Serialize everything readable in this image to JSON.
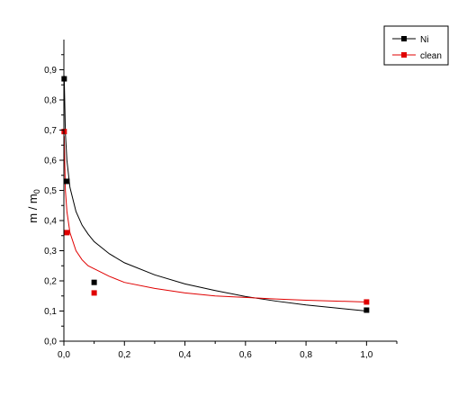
{
  "chart_data": {
    "type": "scatter",
    "title": "",
    "xlabel": "",
    "ylabel": "m / m",
    "ylabel_sub": "0",
    "xlim": [
      0.0,
      1.1
    ],
    "ylim": [
      0.0,
      1.0
    ],
    "x_ticks": [
      0.0,
      0.2,
      0.4,
      0.6,
      0.8,
      1.0
    ],
    "x_tick_labels": [
      "0,0",
      "0,2",
      "0,4",
      "0,6",
      "0,8",
      "1,0"
    ],
    "y_ticks": [
      0.0,
      0.1,
      0.2,
      0.3,
      0.4,
      0.5,
      0.6,
      0.7,
      0.8,
      0.9
    ],
    "y_tick_labels": [
      "0,0",
      "0,1",
      "0,2",
      "0,3",
      "0,4",
      "0,5",
      "0,6",
      "0,7",
      "0,8",
      "0,9"
    ],
    "grid": false,
    "legend_position": "top-right",
    "series": [
      {
        "name": "Ni",
        "color": "#000000",
        "marker": "square",
        "points": [
          {
            "x": 0.001,
            "y": 0.87
          },
          {
            "x": 0.01,
            "y": 0.53
          },
          {
            "x": 0.1,
            "y": 0.195
          },
          {
            "x": 1.0,
            "y": 0.103
          }
        ],
        "fit_curve": [
          {
            "x": 0.001,
            "y": 0.88
          },
          {
            "x": 0.005,
            "y": 0.69
          },
          {
            "x": 0.01,
            "y": 0.6
          },
          {
            "x": 0.02,
            "y": 0.51
          },
          {
            "x": 0.04,
            "y": 0.43
          },
          {
            "x": 0.06,
            "y": 0.385
          },
          {
            "x": 0.08,
            "y": 0.355
          },
          {
            "x": 0.1,
            "y": 0.33
          },
          {
            "x": 0.15,
            "y": 0.29
          },
          {
            "x": 0.2,
            "y": 0.26
          },
          {
            "x": 0.3,
            "y": 0.22
          },
          {
            "x": 0.4,
            "y": 0.19
          },
          {
            "x": 0.5,
            "y": 0.168
          },
          {
            "x": 0.6,
            "y": 0.148
          },
          {
            "x": 0.7,
            "y": 0.133
          },
          {
            "x": 0.8,
            "y": 0.12
          },
          {
            "x": 0.9,
            "y": 0.11
          },
          {
            "x": 1.0,
            "y": 0.1
          }
        ]
      },
      {
        "name": "clean",
        "color": "#e00000",
        "marker": "square",
        "points": [
          {
            "x": 0.001,
            "y": 0.695
          },
          {
            "x": 0.01,
            "y": 0.36
          },
          {
            "x": 0.1,
            "y": 0.16
          },
          {
            "x": 1.0,
            "y": 0.13
          }
        ],
        "fit_curve": [
          {
            "x": 0.001,
            "y": 0.68
          },
          {
            "x": 0.005,
            "y": 0.5
          },
          {
            "x": 0.01,
            "y": 0.43
          },
          {
            "x": 0.02,
            "y": 0.36
          },
          {
            "x": 0.04,
            "y": 0.3
          },
          {
            "x": 0.06,
            "y": 0.27
          },
          {
            "x": 0.08,
            "y": 0.25
          },
          {
            "x": 0.1,
            "y": 0.24
          },
          {
            "x": 0.15,
            "y": 0.215
          },
          {
            "x": 0.2,
            "y": 0.195
          },
          {
            "x": 0.3,
            "y": 0.175
          },
          {
            "x": 0.4,
            "y": 0.16
          },
          {
            "x": 0.5,
            "y": 0.15
          },
          {
            "x": 0.6,
            "y": 0.145
          },
          {
            "x": 0.7,
            "y": 0.14
          },
          {
            "x": 0.8,
            "y": 0.136
          },
          {
            "x": 0.9,
            "y": 0.133
          },
          {
            "x": 1.0,
            "y": 0.13
          }
        ]
      }
    ]
  }
}
